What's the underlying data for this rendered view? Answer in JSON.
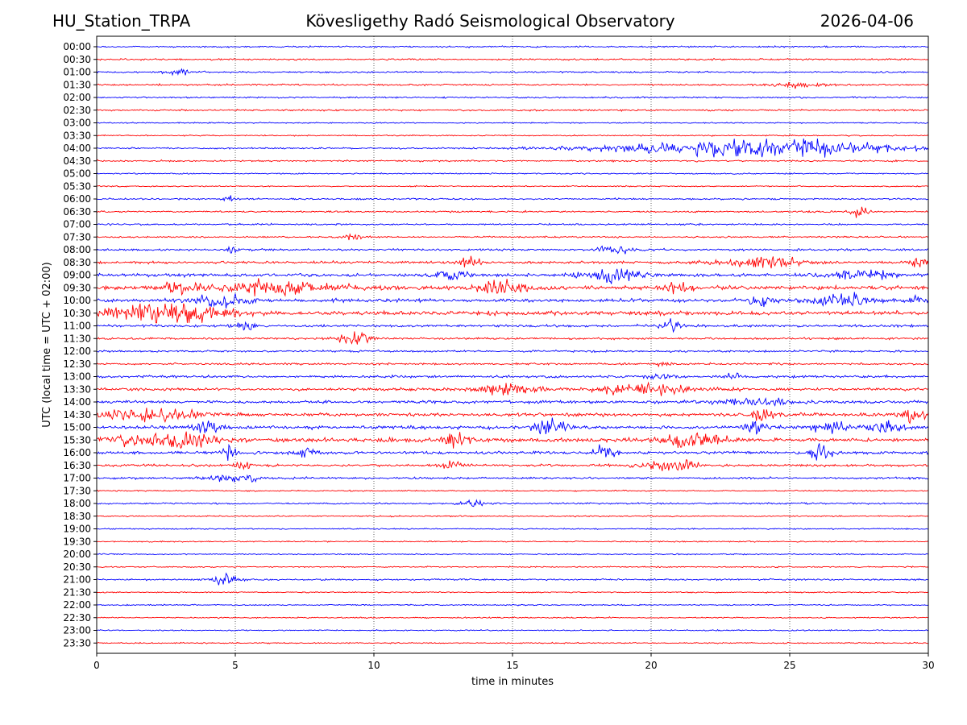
{
  "header": {
    "station": "HU_Station_TRPA",
    "observatory": "Kövesligethy Radó Seismological Observatory",
    "date": "2026-04-06"
  },
  "chart_data": {
    "type": "line",
    "title": "Kövesligethy Radó Seismological Observatory",
    "xlabel": "time in minutes",
    "ylabel": "UTC (local time = UTC + 02:00)",
    "xlim": [
      0,
      30
    ],
    "xticks": [
      0,
      5,
      10,
      15,
      20,
      25,
      30
    ],
    "grid": "vertical dotted lines at 5-minute intervals",
    "colors": [
      "#0000ff",
      "#ff0000"
    ],
    "rows": [
      "00:00",
      "00:30",
      "01:00",
      "01:30",
      "02:00",
      "02:30",
      "03:00",
      "03:30",
      "04:00",
      "04:30",
      "05:00",
      "05:30",
      "06:00",
      "06:30",
      "07:00",
      "07:30",
      "08:00",
      "08:30",
      "09:00",
      "09:30",
      "10:00",
      "10:30",
      "11:00",
      "11:30",
      "12:00",
      "12:30",
      "13:00",
      "13:30",
      "14:00",
      "14:30",
      "15:00",
      "15:30",
      "16:00",
      "16:30",
      "17:00",
      "17:30",
      "18:00",
      "18:30",
      "19:00",
      "19:30",
      "20:00",
      "20:30",
      "21:00",
      "21:30",
      "22:00",
      "22:30",
      "23:00",
      "23:30"
    ],
    "base_noise": [
      2,
      2,
      2,
      2,
      2,
      2,
      1.5,
      1.5,
      2,
      2,
      1.5,
      1.5,
      2,
      2,
      2,
      2,
      2.5,
      3,
      4,
      5,
      4,
      5,
      3,
      2.5,
      2.5,
      2.5,
      3,
      3.5,
      3.5,
      4,
      4,
      4.5,
      3.5,
      3,
      2.5,
      1.5,
      2,
      1.5,
      1.5,
      1.5,
      1.5,
      1.5,
      2,
      1.5,
      1.5,
      1.5,
      1.5,
      1.5
    ],
    "events": [
      {
        "row": 2,
        "t": 3.0,
        "w": 0.4,
        "a": 5
      },
      {
        "row": 3,
        "t": 25.5,
        "w": 1.0,
        "a": 3
      },
      {
        "row": 8,
        "t": 23.2,
        "w": 5.0,
        "a": 9
      },
      {
        "row": 8,
        "t": 25.8,
        "w": 0.6,
        "a": 6
      },
      {
        "row": 12,
        "t": 4.8,
        "w": 0.2,
        "a": 3
      },
      {
        "row": 13,
        "t": 27.5,
        "w": 0.3,
        "a": 6
      },
      {
        "row": 15,
        "t": 9.3,
        "w": 0.4,
        "a": 4
      },
      {
        "row": 16,
        "t": 4.9,
        "w": 0.2,
        "a": 4
      },
      {
        "row": 16,
        "t": 18.7,
        "w": 0.6,
        "a": 4
      },
      {
        "row": 17,
        "t": 13.5,
        "w": 0.4,
        "a": 5
      },
      {
        "row": 17,
        "t": 24.0,
        "w": 1.5,
        "a": 6
      },
      {
        "row": 17,
        "t": 29.7,
        "w": 0.3,
        "a": 6
      },
      {
        "row": 18,
        "t": 12.8,
        "w": 0.6,
        "a": 6
      },
      {
        "row": 18,
        "t": 18.5,
        "w": 1.0,
        "a": 8
      },
      {
        "row": 18,
        "t": 27.5,
        "w": 1.0,
        "a": 5
      },
      {
        "row": 19,
        "t": 3.0,
        "w": 0.6,
        "a": 7
      },
      {
        "row": 19,
        "t": 6.5,
        "w": 1.8,
        "a": 7
      },
      {
        "row": 19,
        "t": 14.5,
        "w": 0.9,
        "a": 8
      },
      {
        "row": 19,
        "t": 20.9,
        "w": 0.4,
        "a": 7
      },
      {
        "row": 20,
        "t": 4.5,
        "w": 1.0,
        "a": 6
      },
      {
        "row": 20,
        "t": 23.8,
        "w": 0.5,
        "a": 6
      },
      {
        "row": 20,
        "t": 27.0,
        "w": 1.0,
        "a": 8
      },
      {
        "row": 20,
        "t": 29.6,
        "w": 0.3,
        "a": 7
      },
      {
        "row": 21,
        "t": 1.8,
        "w": 1.4,
        "a": 10
      },
      {
        "row": 21,
        "t": 3.8,
        "w": 1.2,
        "a": 9
      },
      {
        "row": 22,
        "t": 5.3,
        "w": 0.4,
        "a": 4
      },
      {
        "row": 22,
        "t": 20.8,
        "w": 0.4,
        "a": 6
      },
      {
        "row": 23,
        "t": 9.3,
        "w": 0.6,
        "a": 7
      },
      {
        "row": 25,
        "t": 20.5,
        "w": 0.3,
        "a": 3
      },
      {
        "row": 26,
        "t": 23.0,
        "w": 0.3,
        "a": 4
      },
      {
        "row": 26,
        "t": 20.5,
        "w": 0.5,
        "a": 3
      },
      {
        "row": 27,
        "t": 14.8,
        "w": 1.2,
        "a": 6
      },
      {
        "row": 27,
        "t": 19.8,
        "w": 1.5,
        "a": 6
      },
      {
        "row": 28,
        "t": 24.0,
        "w": 1.2,
        "a": 5
      },
      {
        "row": 29,
        "t": 2.0,
        "w": 1.6,
        "a": 7
      },
      {
        "row": 29,
        "t": 24.1,
        "w": 0.4,
        "a": 7
      },
      {
        "row": 29,
        "t": 29.5,
        "w": 0.4,
        "a": 10
      },
      {
        "row": 30,
        "t": 4.0,
        "w": 0.5,
        "a": 8
      },
      {
        "row": 30,
        "t": 16.3,
        "w": 0.6,
        "a": 8
      },
      {
        "row": 30,
        "t": 23.8,
        "w": 0.4,
        "a": 8
      },
      {
        "row": 30,
        "t": 26.5,
        "w": 0.6,
        "a": 7
      },
      {
        "row": 30,
        "t": 28.5,
        "w": 0.6,
        "a": 7
      },
      {
        "row": 31,
        "t": 2.5,
        "w": 1.8,
        "a": 9
      },
      {
        "row": 31,
        "t": 13.0,
        "w": 0.5,
        "a": 8
      },
      {
        "row": 31,
        "t": 21.5,
        "w": 1.2,
        "a": 8
      },
      {
        "row": 32,
        "t": 4.8,
        "w": 0.3,
        "a": 7
      },
      {
        "row": 32,
        "t": 7.5,
        "w": 0.4,
        "a": 6
      },
      {
        "row": 32,
        "t": 18.3,
        "w": 0.4,
        "a": 7
      },
      {
        "row": 32,
        "t": 26.2,
        "w": 0.4,
        "a": 10
      },
      {
        "row": 33,
        "t": 5.3,
        "w": 0.3,
        "a": 5
      },
      {
        "row": 33,
        "t": 12.8,
        "w": 0.3,
        "a": 5
      },
      {
        "row": 33,
        "t": 20.8,
        "w": 1.0,
        "a": 6
      },
      {
        "row": 34,
        "t": 4.5,
        "w": 0.6,
        "a": 4
      },
      {
        "row": 34,
        "t": 5.5,
        "w": 0.3,
        "a": 5
      },
      {
        "row": 36,
        "t": 13.5,
        "w": 0.5,
        "a": 3
      },
      {
        "row": 42,
        "t": 4.6,
        "w": 0.5,
        "a": 6
      }
    ]
  }
}
